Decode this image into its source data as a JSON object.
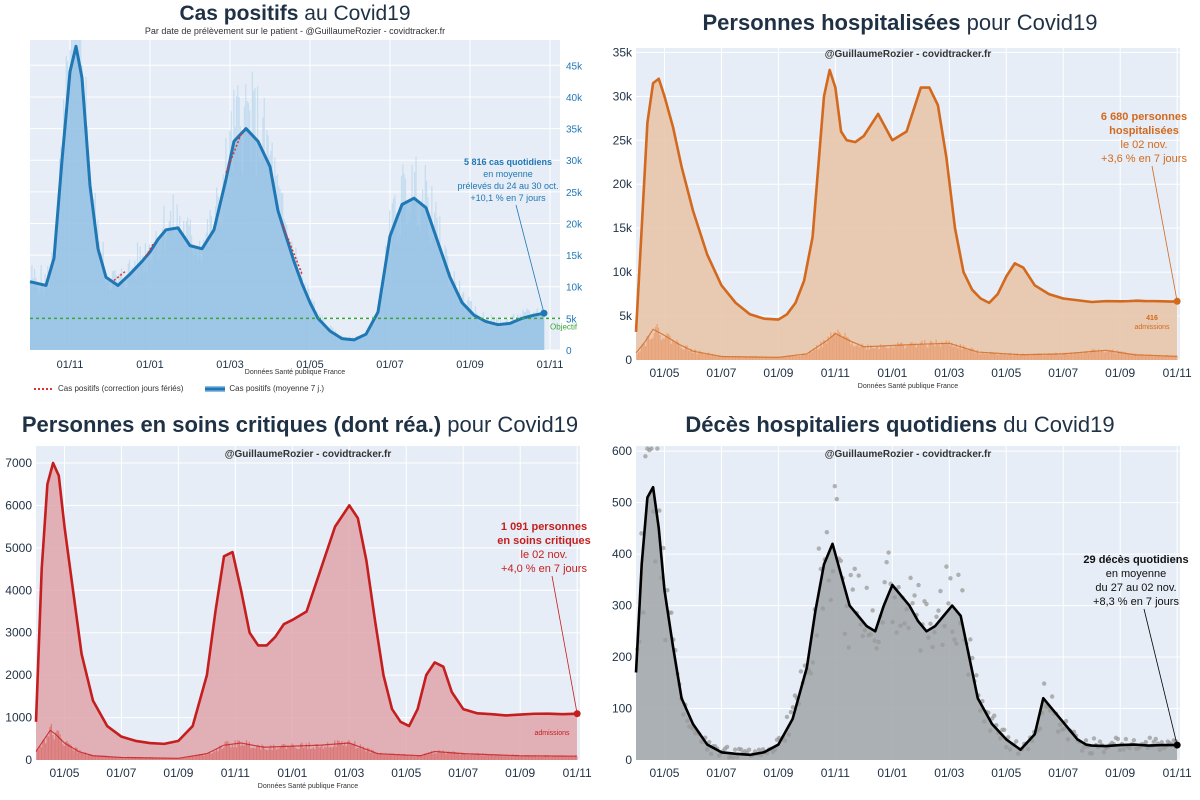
{
  "chart_data": [
    {
      "type": "area",
      "title_bold": "Cas positifs",
      "title_rest": " au Covid19",
      "subtitle": "Par date de prélèvement sur le patient - @GuillaumeRozier - covidtracker.fr",
      "source": "Données Santé publique France",
      "x_ticks": [
        "01/11",
        "01/01",
        "01/03",
        "01/05",
        "01/07",
        "01/09",
        "01/11"
      ],
      "y_ticks": [
        "0",
        "5k",
        "10k",
        "15k",
        "20k",
        "25k",
        "30k",
        "35k",
        "40k",
        "45k"
      ],
      "y_tick_values": [
        0,
        5000,
        10000,
        15000,
        20000,
        25000,
        30000,
        35000,
        40000,
        45000
      ],
      "ylim": [
        0,
        49000
      ],
      "x_start_month": 0,
      "x_end_month": 13.25,
      "x_tick_months": [
        1,
        3,
        5,
        7,
        9,
        11,
        13
      ],
      "series_main": {
        "months": [
          0,
          0.4,
          0.6,
          0.8,
          1.0,
          1.15,
          1.3,
          1.5,
          1.7,
          1.9,
          2.2,
          2.5,
          2.8,
          3.0,
          3.2,
          3.4,
          3.7,
          4.0,
          4.3,
          4.6,
          4.9,
          5.1,
          5.4,
          5.7,
          6.0,
          6.2,
          6.4,
          6.6,
          6.8,
          7.0,
          7.2,
          7.5,
          7.8,
          8.1,
          8.4,
          8.7,
          9.0,
          9.3,
          9.6,
          9.9,
          10.2,
          10.5,
          10.8,
          11.1,
          11.4,
          11.7,
          12.0,
          12.3,
          12.6,
          12.85
        ],
        "values": [
          10800,
          10200,
          14500,
          30000,
          44000,
          48000,
          43000,
          26000,
          16000,
          11500,
          10200,
          12000,
          14000,
          15500,
          17500,
          19000,
          19300,
          16500,
          16000,
          19000,
          27000,
          33000,
          35000,
          33000,
          29000,
          22000,
          18000,
          14000,
          10500,
          7500,
          5000,
          3000,
          1800,
          1600,
          2500,
          6000,
          18000,
          23000,
          24000,
          22500,
          17000,
          11500,
          7500,
          5500,
          4500,
          4000,
          4200,
          5000,
          5500,
          5816
        ]
      },
      "series_dotted": {
        "months": [
          2.1,
          2.4,
          2.9,
          3.1,
          4.9,
          5.3,
          6.3,
          6.8,
          7.0
        ],
        "values": [
          11000,
          12500,
          14800,
          17000,
          28000,
          34500,
          20000,
          12000,
          9500
        ]
      },
      "objective_value": 5000,
      "objective_label": "Objectif",
      "legend": [
        "Cas positifs (correction jours fériés)",
        "Cas positifs (moyenne 7 j.)"
      ],
      "annotation": [
        "5 816 cas quotidiens",
        "en moyenne",
        "prélevés du 24 au 30 oct.",
        "+10,1 % en 7 jours"
      ],
      "colors": {
        "line": "#1f77b4",
        "fill": "#8fbde3",
        "bars": "#b7d5ee",
        "dotted": "#e03030",
        "objective": "#3aa63a",
        "bg": "#e6edf6"
      }
    },
    {
      "type": "area",
      "title_bold": "Personnes hospitalisées",
      "title_rest": " pour Covid19",
      "subtitle": "@GuillaumeRozier - covidtracker.fr",
      "source": "Données Santé publique France",
      "x_ticks": [
        "01/05",
        "01/07",
        "01/09",
        "01/11",
        "01/01",
        "01/03",
        "01/05",
        "01/07",
        "01/09",
        "01/11"
      ],
      "y_ticks": [
        "0",
        "5k",
        "10k",
        "15k",
        "20k",
        "25k",
        "30k",
        "35k"
      ],
      "y_tick_values": [
        0,
        5000,
        10000,
        15000,
        20000,
        25000,
        30000,
        35000
      ],
      "ylim": [
        0,
        35500
      ],
      "x_start_month": 0,
      "x_end_month": 19.1,
      "x_tick_months": [
        1,
        3,
        5,
        7,
        9,
        11,
        13,
        15,
        17,
        19
      ],
      "series_main": {
        "months": [
          0,
          0.2,
          0.4,
          0.6,
          0.8,
          1.0,
          1.3,
          1.6,
          2.0,
          2.5,
          3.0,
          3.5,
          4.0,
          4.5,
          5.0,
          5.3,
          5.6,
          5.9,
          6.2,
          6.4,
          6.6,
          6.8,
          7.0,
          7.2,
          7.4,
          7.7,
          8.0,
          8.5,
          9.0,
          9.5,
          10.0,
          10.3,
          10.6,
          10.9,
          11.2,
          11.5,
          11.8,
          12.1,
          12.4,
          12.7,
          13.0,
          13.3,
          13.6,
          14.0,
          14.5,
          15.0,
          15.5,
          16.0,
          16.5,
          17.0,
          17.3,
          17.6,
          17.9,
          18.2,
          18.5,
          18.8,
          19.0
        ],
        "values": [
          3200,
          15000,
          27000,
          31500,
          32000,
          30000,
          26500,
          22000,
          17000,
          12000,
          8500,
          6500,
          5200,
          4700,
          4600,
          5200,
          6500,
          9000,
          14000,
          22000,
          30000,
          33000,
          31000,
          26000,
          25000,
          24800,
          25500,
          28000,
          25000,
          26000,
          31000,
          31000,
          29000,
          23000,
          15000,
          10000,
          8000,
          7000,
          6500,
          7500,
          9500,
          11000,
          10500,
          8500,
          7500,
          7000,
          6800,
          6600,
          6700,
          6680,
          6700,
          6750,
          6700,
          6700,
          6680,
          6650,
          6680
        ]
      },
      "series_bars": {
        "months": [
          0,
          0.3,
          0.6,
          1.0,
          1.5,
          2.0,
          3.0,
          5.0,
          6.0,
          6.7,
          7.0,
          7.5,
          8.0,
          10.0,
          11.0,
          12.0,
          13.5,
          15.0,
          16.5,
          17.5,
          19.0
        ],
        "values": [
          800,
          2000,
          3500,
          2800,
          1800,
          1000,
          400,
          300,
          700,
          2200,
          3000,
          2200,
          1500,
          1800,
          1900,
          900,
          600,
          700,
          1100,
          600,
          416
        ]
      },
      "annotation": [
        "6 680 personnes",
        "hospitalisées",
        "le 02 nov.",
        "+3,6 % en 7 jours"
      ],
      "bar_label": [
        "416",
        "admissions"
      ],
      "colors": {
        "line": "#d2691e",
        "fill": "#e8c2a4",
        "bars": "#e8996a",
        "bg": "#e6edf6"
      }
    },
    {
      "type": "area",
      "title_bold": "Personnes en soins critiques (dont réa.)",
      "title_rest": " pour Covid19",
      "subtitle": "@GuillaumeRozier - covidtracker.fr",
      "source": "Données Santé publique France",
      "x_ticks": [
        "01/05",
        "01/07",
        "01/09",
        "01/11",
        "01/01",
        "01/03",
        "01/05",
        "01/07",
        "01/09",
        "01/11"
      ],
      "y_ticks": [
        "0",
        "1000",
        "2000",
        "3000",
        "4000",
        "5000",
        "6000",
        "7000"
      ],
      "y_tick_values": [
        0,
        1000,
        2000,
        3000,
        4000,
        5000,
        6000,
        7000
      ],
      "ylim": [
        0,
        7400
      ],
      "x_start_month": 0,
      "x_end_month": 19.1,
      "x_tick_months": [
        1,
        3,
        5,
        7,
        9,
        11,
        13,
        15,
        17,
        19
      ],
      "series_main": {
        "months": [
          0,
          0.2,
          0.4,
          0.6,
          0.8,
          1.0,
          1.3,
          1.6,
          2.0,
          2.5,
          3.0,
          3.5,
          4.0,
          4.5,
          5.0,
          5.5,
          6.0,
          6.3,
          6.6,
          6.9,
          7.2,
          7.5,
          7.8,
          8.1,
          8.4,
          8.7,
          9.0,
          9.5,
          10.0,
          10.5,
          11.0,
          11.3,
          11.6,
          11.9,
          12.2,
          12.5,
          12.8,
          13.1,
          13.4,
          13.7,
          14.0,
          14.3,
          14.6,
          15.0,
          15.5,
          16.0,
          16.5,
          17.0,
          17.5,
          18.0,
          18.5,
          19.0
        ],
        "values": [
          900,
          4500,
          6500,
          7000,
          6700,
          5500,
          4000,
          2500,
          1400,
          800,
          550,
          450,
          400,
          380,
          450,
          800,
          2000,
          3500,
          4800,
          4900,
          4000,
          3000,
          2700,
          2700,
          2900,
          3200,
          3300,
          3500,
          4500,
          5500,
          6000,
          5700,
          4700,
          3300,
          2000,
          1200,
          900,
          800,
          1200,
          2000,
          2300,
          2200,
          1600,
          1200,
          1100,
          1080,
          1050,
          1070,
          1090,
          1091,
          1080,
          1091
        ]
      },
      "series_bars": {
        "months": [
          0,
          0.3,
          0.5,
          0.7,
          1.0,
          1.5,
          2.0,
          3.0,
          5.0,
          6.0,
          6.6,
          7.2,
          8.0,
          10.0,
          11.0,
          12.0,
          13.5,
          14.0,
          15.0,
          17.0,
          19.0
        ],
        "values": [
          200,
          500,
          700,
          600,
          400,
          200,
          100,
          60,
          40,
          150,
          350,
          400,
          300,
          350,
          400,
          150,
          100,
          200,
          150,
          100,
          90
        ]
      },
      "annotation": [
        "1 091 personnes",
        "en soins critiques",
        "le 02 nov.",
        "+4,0 % en 7 jours"
      ],
      "bar_label": [
        "admissions"
      ],
      "colors": {
        "line": "#c41e1e",
        "fill": "#dfa4aa",
        "bars": "#d96a6a",
        "bg": "#e6edf6"
      }
    },
    {
      "type": "line",
      "title_bold": "Décès hospitaliers quotidiens",
      "title_rest": " du Covid19",
      "subtitle": "@GuillaumeRozier - covidtracker.fr",
      "source": "",
      "x_ticks": [
        "01/05",
        "01/07",
        "01/09",
        "01/11",
        "01/01",
        "01/03",
        "01/05",
        "01/07",
        "01/09",
        "01/11"
      ],
      "y_ticks": [
        "0",
        "100",
        "200",
        "300",
        "400",
        "500",
        "600"
      ],
      "y_tick_values": [
        0,
        100,
        200,
        300,
        400,
        500,
        600
      ],
      "ylim": [
        0,
        610
      ],
      "x_start_month": 0,
      "x_end_month": 19.1,
      "x_tick_months": [
        1,
        3,
        5,
        7,
        9,
        11,
        13,
        15,
        17,
        19
      ],
      "series_main": {
        "months": [
          0,
          0.2,
          0.4,
          0.6,
          0.8,
          1.0,
          1.3,
          1.6,
          2.0,
          2.5,
          3.0,
          3.5,
          4.0,
          4.5,
          5.0,
          5.5,
          6.0,
          6.3,
          6.6,
          6.9,
          7.2,
          7.5,
          7.8,
          8.1,
          8.4,
          8.7,
          9.0,
          9.3,
          9.6,
          9.9,
          10.2,
          10.5,
          10.8,
          11.1,
          11.4,
          11.7,
          12.0,
          12.5,
          13.0,
          13.5,
          14.0,
          14.3,
          14.6,
          14.9,
          15.2,
          15.5,
          15.8,
          16.0,
          16.5,
          17.0,
          17.5,
          18.0,
          18.5,
          19.0
        ],
        "values": [
          170,
          380,
          510,
          530,
          450,
          330,
          220,
          120,
          70,
          30,
          15,
          12,
          10,
          15,
          30,
          80,
          180,
          290,
          380,
          420,
          360,
          300,
          280,
          260,
          250,
          300,
          340,
          320,
          300,
          270,
          250,
          260,
          280,
          300,
          280,
          200,
          120,
          70,
          40,
          20,
          50,
          120,
          100,
          80,
          60,
          40,
          30,
          28,
          27,
          29,
          30,
          28,
          29,
          29
        ]
      },
      "annotation": [
        "29 décès quotidiens",
        "en moyenne",
        "du 27 au 02 nov.",
        "+8,3 % en 7 jours"
      ],
      "colors": {
        "line": "#000000",
        "fill": "#a0a4a8",
        "dots": "#9a9a9a",
        "bg": "#e6edf6"
      }
    }
  ]
}
